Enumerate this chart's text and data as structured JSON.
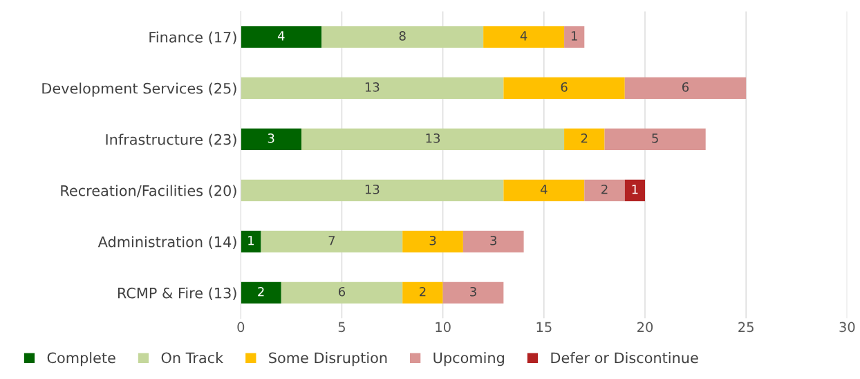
{
  "chart_data": {
    "type": "bar",
    "orientation": "horizontal",
    "stacked": true,
    "data_labels": true,
    "grid": "x",
    "legend": "bottom",
    "categories": [
      "Finance (17)",
      "Development Services (25)",
      "Infrastructure (23)",
      "Recreation/Facilities (20)",
      "Administration (14)",
      "RCMP & Fire (13)"
    ],
    "series": [
      {
        "name": "Complete",
        "color": "#006400",
        "values": [
          4,
          null,
          3,
          null,
          1,
          2
        ]
      },
      {
        "name": "On Track",
        "color": "#c4d79b",
        "values": [
          8,
          13,
          13,
          13,
          7,
          6
        ]
      },
      {
        "name": "Some Disruption",
        "color": "#ffc000",
        "values": [
          4,
          6,
          2,
          4,
          3,
          2
        ]
      },
      {
        "name": "Upcoming",
        "color": "#da9694",
        "values": [
          1,
          6,
          5,
          2,
          3,
          3
        ]
      },
      {
        "name": "Defer or Discontinue",
        "color": "#b22222",
        "values": [
          null,
          null,
          null,
          1,
          null,
          null
        ]
      }
    ],
    "xlim": [
      0,
      30
    ],
    "xticks": [
      0,
      5,
      10,
      15,
      20,
      25,
      30
    ]
  }
}
